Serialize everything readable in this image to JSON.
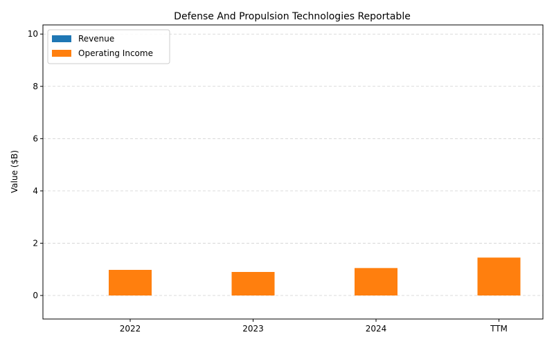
{
  "chart_data": {
    "type": "bar",
    "title": "Defense And Propulsion Technologies Reportable",
    "xlabel": "",
    "ylabel": "Value ($B)",
    "categories": [
      "2022",
      "2023",
      "2024",
      "TTM"
    ],
    "series": [
      {
        "name": "Revenue",
        "color": "#1f77b4",
        "values": [
          0,
          0,
          0,
          0
        ]
      },
      {
        "name": "Operating Income",
        "color": "#ff7f0e",
        "values": [
          0.98,
          0.9,
          1.05,
          1.45
        ]
      }
    ],
    "ylim": [
      -0.9,
      10.35
    ],
    "yticks": [
      0,
      2,
      4,
      6,
      8,
      10
    ],
    "grid": true,
    "legend_position": "top-left"
  }
}
